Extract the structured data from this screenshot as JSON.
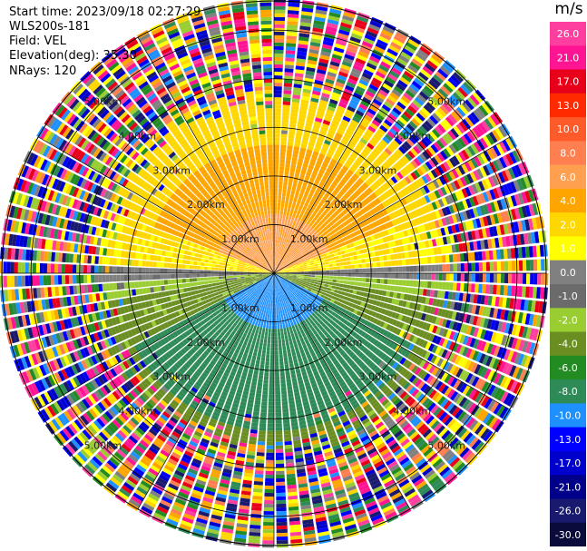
{
  "header": {
    "start_time": "Start time: 2023/09/18 02:27:29",
    "instrument": "WLS200s-181",
    "field": "Field: VEL",
    "elevation": "Elevation(deg): 35.30",
    "nrays": "NRays: 120"
  },
  "colorbar": {
    "unit": "m/s",
    "levels": [
      "26.0",
      "21.0",
      "17.0",
      "13.0",
      "10.0",
      "8.0",
      "6.0",
      "4.0",
      "2.0",
      "1.0",
      "0.0",
      "-1.0",
      "-2.0",
      "-4.0",
      "-6.0",
      "-8.0",
      "-10.0",
      "-13.0",
      "-17.0",
      "-21.0",
      "-26.0",
      "-30.0"
    ],
    "colors": [
      "#ff3fa0",
      "#ff1493",
      "#e8001a",
      "#ff2a00",
      "#ff5a2a",
      "#ff7f50",
      "#ff9f50",
      "#ffa500",
      "#ffd700",
      "#ffff00",
      "#808080",
      "#6b6b6b",
      "#9acd32",
      "#6b8e23",
      "#228b22",
      "#2e8b57",
      "#1e90ff",
      "#0000ff",
      "#0000cd",
      "#00008b",
      "#191970",
      "#0b0b3b"
    ]
  },
  "chart_data": {
    "type": "heatmap",
    "subtype": "radar-ppi",
    "field": "VEL",
    "units": "m/s",
    "nrays": 120,
    "elevation_deg": 35.3,
    "range_rings_km": [
      1.0,
      2.0,
      3.0,
      4.0,
      5.0
    ],
    "range_ring_labels": [
      "1.00km",
      "2.00km",
      "3.00km",
      "4.00km",
      "5.00km"
    ],
    "zones": [
      {
        "region": "north, near range",
        "velocity_ms": 6.0
      },
      {
        "region": "north, mid range",
        "velocity_ms": 4.0
      },
      {
        "region": "east-west band",
        "velocity_ms": 2.0
      },
      {
        "region": "south, near range",
        "velocity_ms": -8.0
      },
      {
        "region": "south, mid range",
        "velocity_ms": -6.0
      },
      {
        "region": "southeast/southwest flanks",
        "velocity_ms": -2.0
      },
      {
        "region": "outer range (noise)",
        "velocity_ms": null
      }
    ],
    "crange": [
      -30,
      26
    ]
  }
}
